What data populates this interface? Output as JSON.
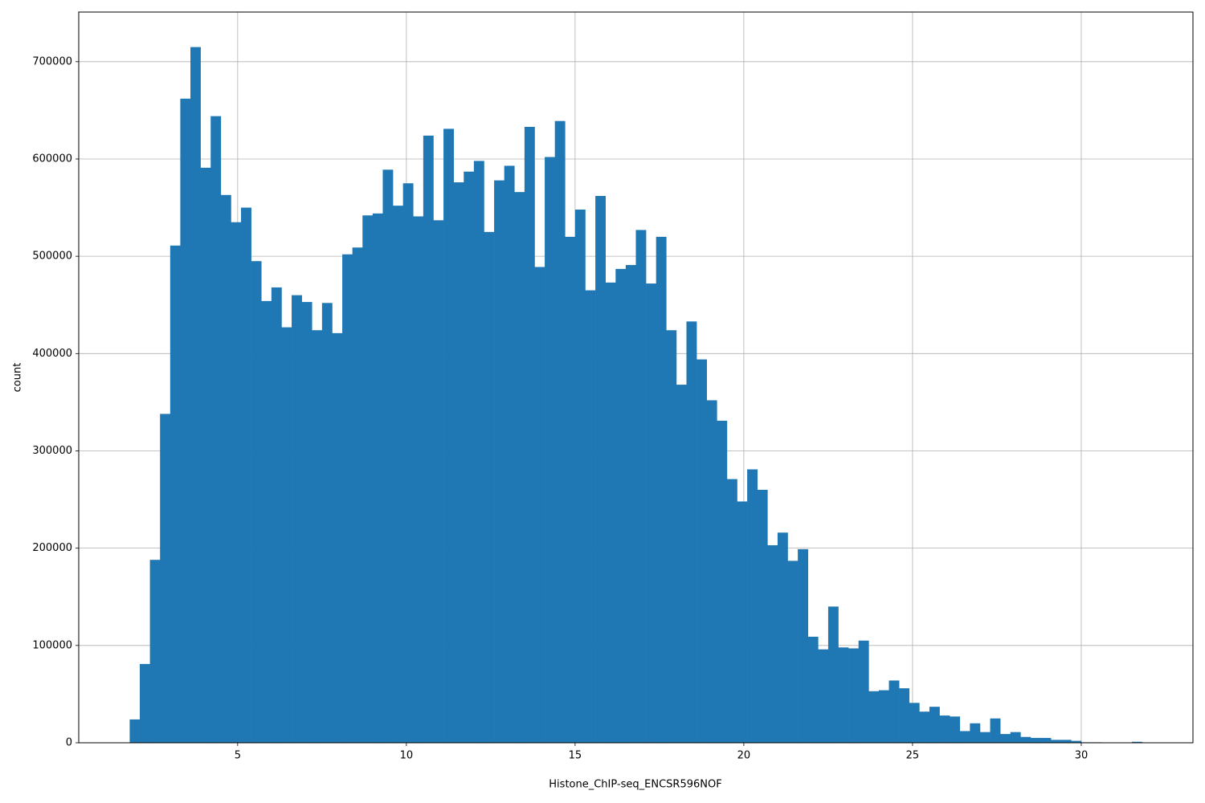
{
  "chart_data": {
    "type": "histogram",
    "xlabel": "Histone_ChIP-seq_ENCSR596NOF",
    "ylabel": "count",
    "color": "#1f77b4",
    "grid": true,
    "bins": [
      1.8,
      2.1,
      2.4,
      2.7,
      3.0,
      3.3,
      3.6,
      3.9,
      4.2,
      4.5,
      4.8,
      5.1,
      5.4,
      5.7,
      6.0,
      6.3,
      6.6,
      6.9,
      7.2,
      7.5,
      7.8,
      8.1,
      8.4,
      8.7,
      9.0,
      9.3,
      9.6,
      9.9,
      10.2,
      10.5,
      10.8,
      11.1,
      11.4,
      11.7,
      12.0,
      12.3,
      12.6,
      12.9,
      13.2,
      13.5,
      13.8,
      14.1,
      14.4,
      14.7,
      15.0,
      15.3,
      15.6,
      15.9,
      16.2,
      16.5,
      16.8,
      17.1,
      17.4,
      17.7,
      18.0,
      18.3,
      18.6,
      18.9,
      19.2,
      19.5,
      19.8,
      20.1,
      20.4,
      20.7,
      21.0,
      21.3,
      21.6,
      21.9,
      22.2,
      22.5,
      22.8,
      23.1,
      23.4,
      23.7,
      24.0,
      24.3,
      24.6,
      24.9,
      25.2,
      25.5,
      25.8,
      26.1,
      26.4,
      26.7,
      27.0,
      27.3,
      27.6,
      27.9,
      28.2,
      28.5,
      28.8,
      29.1,
      29.4,
      29.7,
      30.0,
      30.3,
      30.6,
      30.9,
      31.2,
      31.5,
      31.8
    ],
    "counts": [
      24000,
      81000,
      188000,
      338000,
      511000,
      662000,
      715000,
      591000,
      644000,
      563000,
      535000,
      550000,
      495000,
      454000,
      468000,
      427000,
      460000,
      453000,
      424000,
      452000,
      421000,
      502000,
      509000,
      542000,
      544000,
      589000,
      552000,
      575000,
      541000,
      624000,
      537000,
      631000,
      576000,
      587000,
      598000,
      525000,
      578000,
      593000,
      566000,
      633000,
      489000,
      602000,
      639000,
      520000,
      548000,
      465000,
      562000,
      473000,
      487000,
      491000,
      527000,
      472000,
      520000,
      424000,
      368000,
      433000,
      394000,
      352000,
      331000,
      271000,
      248000,
      281000,
      260000,
      203000,
      216000,
      187000,
      199000,
      109000,
      96000,
      140000,
      98000,
      97000,
      105000,
      53000,
      54000,
      64000,
      56000,
      41000,
      32000,
      37000,
      28000,
      27000,
      12000,
      20000,
      11000,
      25000,
      9000,
      11000,
      6000,
      5000,
      5000,
      3000,
      3000,
      2000,
      500,
      500,
      300,
      300,
      300,
      1000
    ],
    "xlim": [
      0.29,
      33.31
    ],
    "ylim": [
      0,
      751000
    ],
    "xticks": [
      5,
      10,
      15,
      20,
      25,
      30
    ],
    "yticks": [
      0,
      100000,
      200000,
      300000,
      400000,
      500000,
      600000,
      700000
    ]
  }
}
